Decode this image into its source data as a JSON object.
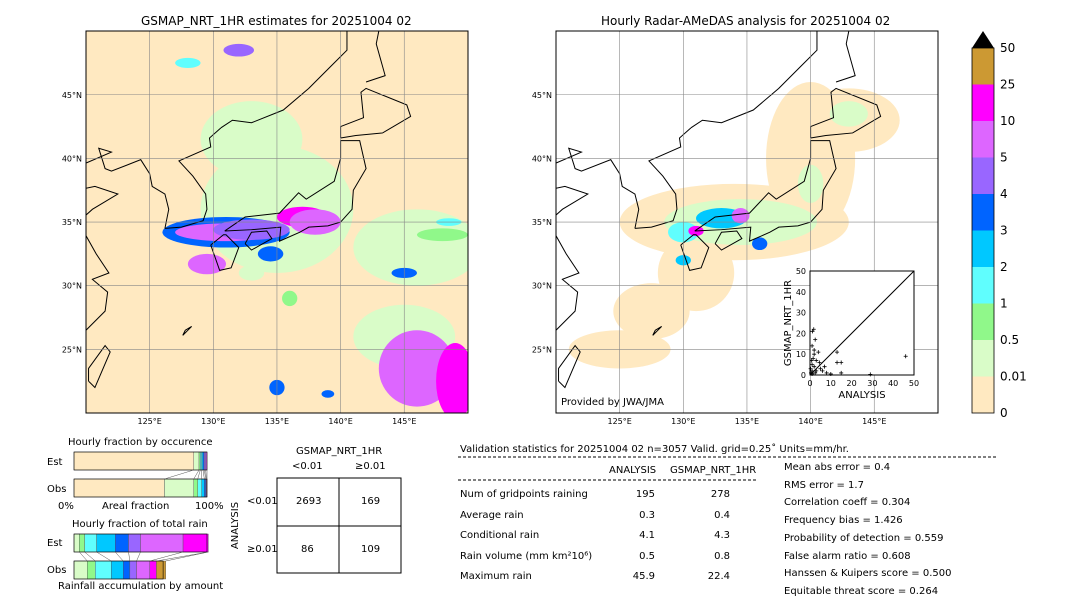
{
  "chart_data": [
    {
      "type": "map",
      "title": "GSMAP_NRT_1HR estimates for 20251004 02",
      "lon_ticks": [
        "125°E",
        "130°E",
        "135°E",
        "140°E",
        "145°E"
      ],
      "lat_ticks": [
        "45°N",
        "40°N",
        "35°N",
        "30°N",
        "25°N"
      ],
      "lon_range": [
        120,
        150
      ],
      "lat_range": [
        20,
        50
      ]
    },
    {
      "type": "map",
      "title": "Hourly Radar-AMeDAS analysis for 20251004 02",
      "lon_ticks": [
        "125°E",
        "130°E",
        "135°E",
        "140°E",
        "145°E"
      ],
      "lat_ticks": [
        "45°N",
        "40°N",
        "35°N",
        "30°N",
        "25°N"
      ],
      "credit": "Provided by JWA/JMA",
      "inset": {
        "type": "scatter",
        "xlabel": "ANALYSIS",
        "ylabel": "GSMAP_NRT_1HR",
        "xlim": [
          0,
          50
        ],
        "ylim": [
          0,
          50
        ],
        "ticks": [
          "0",
          "10",
          "20",
          "30",
          "40",
          "50"
        ],
        "points": [
          [
            0.5,
            1
          ],
          [
            1,
            2
          ],
          [
            1,
            5
          ],
          [
            1.5,
            8
          ],
          [
            2,
            10
          ],
          [
            1,
            14
          ],
          [
            1.2,
            21
          ],
          [
            1.8,
            22
          ],
          [
            2.5,
            17
          ],
          [
            2,
            12
          ],
          [
            3,
            7
          ],
          [
            4,
            11
          ],
          [
            4.5,
            6
          ],
          [
            5,
            3
          ],
          [
            6,
            2
          ],
          [
            7,
            4
          ],
          [
            8,
            1
          ],
          [
            10,
            0.5
          ],
          [
            13,
            11
          ],
          [
            13,
            6
          ],
          [
            15,
            6
          ],
          [
            15,
            1
          ],
          [
            29,
            0.3
          ],
          [
            46,
            9
          ],
          [
            0.3,
            3
          ],
          [
            0.8,
            7
          ],
          [
            2,
            4
          ],
          [
            3,
            2
          ],
          [
            1,
            0.5
          ],
          [
            2.5,
            1
          ]
        ]
      }
    },
    {
      "type": "colorbar",
      "levels": [
        "0",
        "0.01",
        "0.5",
        "1",
        "2",
        "3",
        "4",
        "5",
        "10",
        "25",
        "50"
      ],
      "colors": [
        "#ffe9c1",
        "#d9fcc8",
        "#90f88a",
        "#60fefe",
        "#00c8ff",
        "#0064ff",
        "#9966ff",
        "#dd66ff",
        "#ff00ff",
        "#cc9933"
      ],
      "extend": "max"
    },
    {
      "type": "bar",
      "title": "Hourly fraction by occurence",
      "xlabel": "Areal fraction",
      "rows": [
        "Est",
        "Obs"
      ],
      "x_ticks": [
        "0%",
        "100%"
      ],
      "est": [
        0.9,
        0.04,
        0.01,
        0.01,
        0.01,
        0.01,
        0.01,
        0.01
      ],
      "obs": [
        0.68,
        0.22,
        0.03,
        0.03,
        0.02,
        0.01,
        0.005,
        0.005
      ]
    },
    {
      "type": "bar",
      "title": "Hourly fraction of total rain",
      "xlabel": "Rainfall accumulation by amount",
      "rows": [
        "Est",
        "Obs"
      ],
      "est": [
        0.04,
        0.04,
        0.09,
        0.14,
        0.1,
        0.09,
        0.32,
        0.19,
        0
      ],
      "obs_total_fraction": 0.67,
      "obs": [
        0.1,
        0.06,
        0.12,
        0.09,
        0.05,
        0.05,
        0.1,
        0.05,
        0.07
      ]
    }
  ],
  "contingency": {
    "title": "GSMAP_NRT_1HR",
    "col_labels": [
      "<0.01",
      "≥0.01"
    ],
    "row_title": "ANALYSIS",
    "row_labels": [
      "<0.01",
      "≥0.01"
    ],
    "cells": [
      [
        "2693",
        "169"
      ],
      [
        "86",
        "109"
      ]
    ]
  },
  "stats": {
    "header": "Validation statistics for 20251004 02  n=3057 Valid. grid=0.25˚ Units=mm/hr.",
    "col_analysis": "ANALYSIS",
    "col_gsmap": "GSMAP_NRT_1HR",
    "rows": [
      {
        "label": "Num of gridpoints raining",
        "a": "195",
        "g": "278"
      },
      {
        "label": "Average rain",
        "a": "0.3",
        "g": "0.4"
      },
      {
        "label": "Conditional rain",
        "a": "4.1",
        "g": "4.3"
      },
      {
        "label": "Rain volume (mm km²10⁶)",
        "a": "0.5",
        "g": "0.8"
      },
      {
        "label": "Maximum rain",
        "a": "45.9",
        "g": "22.4"
      }
    ],
    "scores": [
      "Mean abs error =    0.4",
      "RMS error =    1.7",
      "Correlation coeff =  0.304",
      "Frequency bias =  1.426",
      "Probability of detection =  0.559",
      "False alarm ratio =  0.608",
      "Hanssen & Kuipers score =  0.500",
      "Equitable threat score =  0.264"
    ]
  }
}
